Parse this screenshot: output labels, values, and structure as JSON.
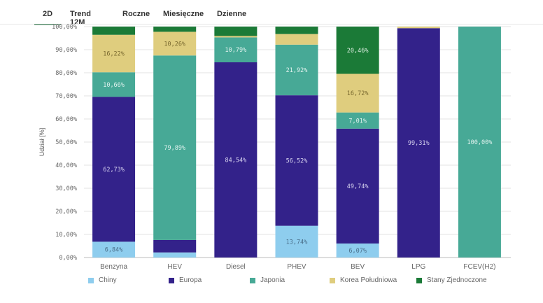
{
  "tabs": [
    {
      "label": "2D",
      "active": true
    },
    {
      "label": "Trend 12M",
      "active": false
    },
    {
      "label": "Roczne",
      "active": false
    },
    {
      "label": "Miesięczne",
      "active": false
    },
    {
      "label": "Dzienne",
      "active": false
    }
  ],
  "chart_data": {
    "type": "bar",
    "stacked": true,
    "normalized": true,
    "title": "",
    "xlabel": "",
    "ylabel": "Udział [%]",
    "ylim": [
      0,
      100
    ],
    "yticks": [
      "0,00%",
      "10,00%",
      "20,00%",
      "30,00%",
      "40,00%",
      "50,00%",
      "60,00%",
      "70,00%",
      "80,00%",
      "90,00%",
      "100,00%"
    ],
    "grid": true,
    "legend_position": "bottom",
    "categories": [
      "Benzyna",
      "HEV",
      "Diesel",
      "PHEV",
      "BEV",
      "LPG",
      "FCEV(H2)"
    ],
    "series": [
      {
        "name": "Chiny",
        "color": "#8ecdee",
        "label_color": "#4a6f8a",
        "values": [
          6.84,
          2.2,
          0.0,
          13.74,
          6.07,
          0.0,
          0.0
        ],
        "labels": [
          "6,84%",
          "",
          "",
          "13,74%",
          "6,07%",
          "",
          ""
        ]
      },
      {
        "name": "Europa",
        "color": "#33228a",
        "label_color": "#d8d4f0",
        "values": [
          62.73,
          5.4,
          84.54,
          56.52,
          49.74,
          99.31,
          0.0
        ],
        "labels": [
          "62,73%",
          "",
          "84,54%",
          "56,52%",
          "49,74%",
          "99,31%",
          ""
        ]
      },
      {
        "name": "Japonia",
        "color": "#47a996",
        "label_color": "#e0f2ee",
        "values": [
          10.66,
          79.89,
          10.79,
          21.92,
          7.01,
          0.0,
          100.0
        ],
        "labels": [
          "10,66%",
          "79,89%",
          "10,79%",
          "21,92%",
          "7,01%",
          "",
          "100,00%"
        ]
      },
      {
        "name": "Korea Południowa",
        "color": "#dfcd7e",
        "label_color": "#7a6a30",
        "values": [
          16.22,
          10.26,
          0.6,
          4.6,
          16.72,
          0.69,
          0.0
        ],
        "labels": [
          "16,22%",
          "10,26%",
          "",
          "",
          "16,72%",
          "",
          ""
        ]
      },
      {
        "name": "Stany Zjednoczone",
        "color": "#1b7a37",
        "label_color": "#dff0e3",
        "values": [
          3.55,
          2.25,
          4.07,
          3.22,
          20.46,
          0.0,
          0.0
        ],
        "labels": [
          "",
          "",
          "",
          "",
          "20,46%",
          "",
          ""
        ]
      }
    ]
  }
}
